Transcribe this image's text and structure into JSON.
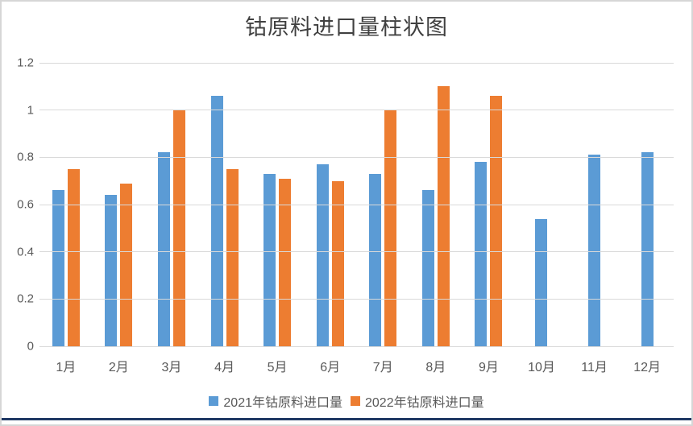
{
  "title": "钴原料进口量柱状图",
  "chart_data": {
    "type": "bar",
    "title": "钴原料进口量柱状图",
    "categories": [
      "1月",
      "2月",
      "3月",
      "4月",
      "5月",
      "6月",
      "7月",
      "8月",
      "9月",
      "10月",
      "11月",
      "12月"
    ],
    "series": [
      {
        "name": "2021年钴原料进口量",
        "color": "#5B9BD5",
        "values": [
          0.66,
          0.64,
          0.82,
          1.06,
          0.73,
          0.77,
          0.73,
          0.66,
          0.78,
          0.54,
          0.81,
          0.82
        ]
      },
      {
        "name": "2022年钴原料进口量",
        "color": "#ED7D31",
        "values": [
          0.75,
          0.69,
          1.0,
          0.75,
          0.71,
          0.7,
          1.0,
          1.1,
          1.06,
          null,
          null,
          null
        ]
      }
    ],
    "xlabel": "",
    "ylabel": "",
    "ylim": [
      0,
      1.2
    ],
    "yticks": [
      0,
      0.2,
      0.4,
      0.6,
      0.8,
      1,
      1.2
    ],
    "grid": true,
    "legend_position": "bottom"
  },
  "colors": {
    "series1": "#5B9BD5",
    "series2": "#ED7D31",
    "gridline": "#D9D9D9",
    "axis_text": "#595959",
    "title_text": "#404040",
    "bottom_rule": "#1F3864",
    "frame_border": "#D6D6D6"
  },
  "legend": {
    "item1": "2021年钴原料进口量",
    "item2": "2022年钴原料进口量"
  }
}
